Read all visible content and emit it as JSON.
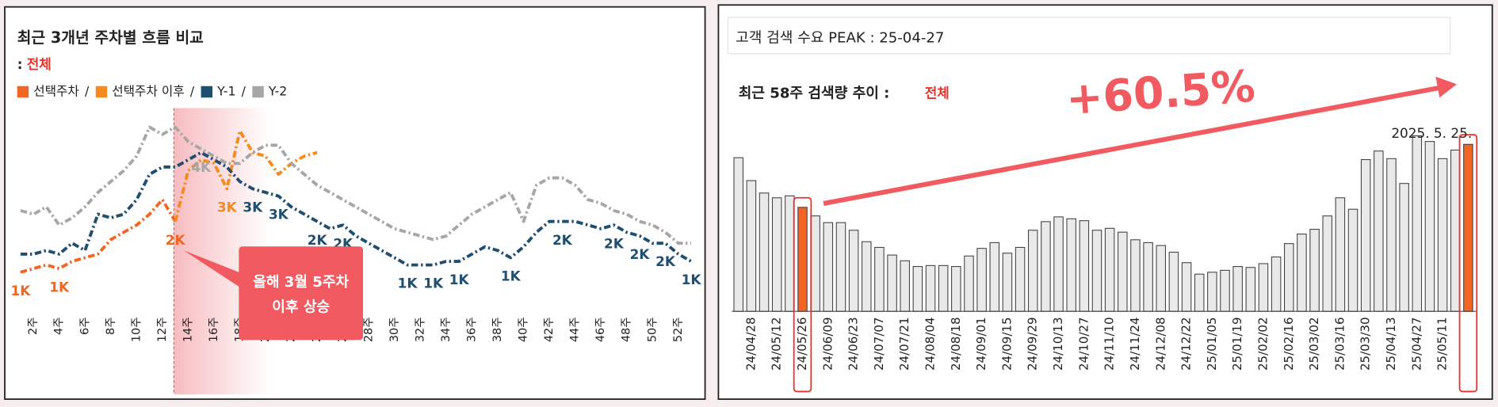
{
  "chart_data": [
    {
      "type": "line",
      "title": "최근 3개년 주차별 흐름 비교",
      "filter_prefix": ":",
      "filter": "전체",
      "legend_separator": "/",
      "categories": [
        null,
        "2주",
        null,
        "4주",
        null,
        "6주",
        null,
        "8주",
        null,
        "10주",
        null,
        "12주",
        null,
        "14주",
        null,
        "16주",
        null,
        "18주",
        null,
        "20주",
        null,
        "22주",
        null,
        "24주",
        null,
        "26주",
        null,
        "28주",
        null,
        "30주",
        null,
        "32주",
        null,
        "34주",
        null,
        "36주",
        null,
        "38주",
        null,
        "40주",
        null,
        "42주",
        null,
        "44주",
        null,
        "46주",
        null,
        "48주",
        null,
        "50주",
        null,
        "52주",
        null
      ],
      "series": [
        {
          "name": "선택주차",
          "color": "#f26522",
          "values": [
            1.0,
            1.1,
            1.2,
            1.1,
            1.3,
            1.4,
            1.5,
            1.9,
            2.1,
            2.3,
            2.6,
            3.0,
            2.4,
            null,
            null,
            null,
            null,
            null,
            null,
            null,
            null,
            null,
            null,
            null,
            null,
            null,
            null,
            null,
            null,
            null,
            null,
            null,
            null,
            null,
            null,
            null,
            null,
            null,
            null,
            null,
            null,
            null,
            null,
            null,
            null,
            null,
            null,
            null,
            null,
            null,
            null,
            null,
            null
          ],
          "value_labels": [
            "1K",
            null,
            null,
            "1K",
            null,
            null,
            null,
            null,
            null,
            null,
            null,
            null,
            "2K",
            null,
            null,
            null,
            null,
            null,
            null,
            null,
            null,
            null,
            null,
            null,
            null,
            null,
            null,
            null,
            null,
            null,
            null,
            null,
            null,
            null,
            null,
            null,
            null,
            null,
            null,
            null,
            null,
            null,
            null,
            null,
            null,
            null,
            null,
            null,
            null,
            null,
            null,
            null,
            null
          ]
        },
        {
          "name": "선택주차 이후",
          "color": "#f58a1f",
          "values": [
            null,
            null,
            null,
            null,
            null,
            null,
            null,
            null,
            null,
            null,
            null,
            null,
            2.4,
            3.8,
            4.1,
            4.0,
            3.3,
            4.9,
            4.3,
            4.2,
            3.7,
            4.0,
            4.2,
            4.3,
            null,
            null,
            null,
            null,
            null,
            null,
            null,
            null,
            null,
            null,
            null,
            null,
            null,
            null,
            null,
            null,
            null,
            null,
            null,
            null,
            null,
            null,
            null,
            null,
            null,
            null,
            null,
            null,
            null
          ],
          "value_labels": [
            null,
            null,
            null,
            null,
            null,
            null,
            null,
            null,
            null,
            null,
            null,
            null,
            null,
            null,
            null,
            null,
            "3K",
            null,
            null,
            null,
            null,
            null,
            null,
            null,
            null,
            null,
            null,
            null,
            null,
            null,
            null,
            null,
            null,
            null,
            null,
            null,
            null,
            null,
            null,
            null,
            null,
            null,
            null,
            null,
            null,
            null,
            null,
            null,
            null,
            null,
            null,
            null,
            null
          ]
        },
        {
          "name": "Y-1",
          "color": "#1f4e6e",
          "values": [
            1.5,
            1.5,
            1.6,
            1.5,
            1.8,
            1.6,
            2.6,
            2.5,
            2.6,
            3.0,
            3.7,
            3.9,
            3.9,
            4.1,
            4.3,
            4.1,
            3.9,
            3.5,
            3.3,
            3.2,
            3.1,
            2.8,
            2.6,
            2.4,
            2.2,
            2.3,
            2.0,
            1.8,
            1.6,
            1.4,
            1.2,
            1.2,
            1.2,
            1.3,
            1.3,
            1.5,
            1.7,
            1.6,
            1.4,
            1.7,
            2.1,
            2.4,
            2.4,
            2.4,
            2.3,
            2.2,
            2.3,
            2.1,
            2.0,
            1.8,
            1.8,
            1.5,
            1.3
          ],
          "value_labels": [
            null,
            null,
            null,
            null,
            null,
            null,
            null,
            null,
            null,
            null,
            null,
            null,
            null,
            null,
            null,
            null,
            null,
            null,
            "3K",
            null,
            "3K",
            null,
            null,
            "2K",
            null,
            "2K",
            null,
            null,
            null,
            null,
            "1K",
            null,
            "1K",
            null,
            "1K",
            null,
            null,
            null,
            "1K",
            null,
            null,
            null,
            "2K",
            null,
            null,
            null,
            "2K",
            null,
            "2K",
            null,
            "2K",
            null,
            "1K"
          ]
        },
        {
          "name": "Y-2",
          "color": "#a6a6a6",
          "values": [
            2.7,
            2.6,
            2.8,
            2.3,
            2.5,
            2.8,
            3.2,
            3.5,
            3.8,
            4.2,
            5.0,
            4.8,
            5.0,
            4.6,
            4.4,
            4.2,
            4.0,
            4.0,
            4.3,
            4.5,
            4.5,
            4.0,
            3.7,
            3.4,
            3.2,
            3.0,
            2.8,
            2.6,
            2.4,
            2.2,
            2.1,
            2.0,
            1.9,
            2.0,
            2.3,
            2.6,
            2.8,
            3.0,
            3.2,
            2.4,
            3.4,
            3.6,
            3.6,
            3.4,
            3.0,
            2.9,
            2.7,
            2.6,
            2.4,
            2.3,
            2.1,
            1.8,
            1.8
          ],
          "value_labels": [
            null,
            null,
            null,
            null,
            null,
            null,
            null,
            null,
            null,
            null,
            null,
            null,
            null,
            null,
            "4K",
            null,
            null,
            null,
            null,
            null,
            null,
            null,
            null,
            null,
            null,
            null,
            null,
            null,
            null,
            null,
            null,
            null,
            null,
            null,
            null,
            null,
            null,
            null,
            null,
            null,
            null,
            null,
            null,
            null,
            null,
            null,
            null,
            null,
            null,
            null,
            null,
            null,
            null
          ]
        }
      ],
      "callout": [
        "올해 3월 5주차",
        "이후 상승"
      ]
    },
    {
      "type": "bar",
      "header": "고객 검색 수요 PEAK : 25-04-27",
      "subtitle": "최근 58주 검색량 추이 :",
      "filter": "전체",
      "categories": [
        null,
        "24/04/28",
        null,
        "24/05/12",
        null,
        "24/05/26",
        null,
        "24/06/09",
        null,
        "24/06/23",
        null,
        "24/07/07",
        null,
        "24/07/21",
        null,
        "24/08/04",
        null,
        "24/08/18",
        null,
        "24/09/01",
        null,
        "24/09/15",
        null,
        "24/09/29",
        null,
        "24/10/13",
        null,
        "24/10/27",
        null,
        "24/11/10",
        null,
        "24/11/24",
        null,
        "24/12/08",
        null,
        "24/12/22",
        null,
        "25/01/05",
        null,
        "25/01/19",
        null,
        "25/02/02",
        null,
        "25/02/16",
        null,
        "25/03/02",
        null,
        "25/03/16",
        null,
        "25/03/30",
        null,
        "25/04/13",
        null,
        "25/04/27",
        null,
        "25/05/11",
        null,
        null
      ],
      "values": [
        161,
        137,
        124,
        119,
        121,
        109,
        100,
        93,
        93,
        85,
        73,
        67,
        59,
        53,
        47,
        48,
        48,
        47,
        58,
        66,
        72,
        61,
        67,
        85,
        94,
        99,
        97,
        95,
        85,
        87,
        83,
        75,
        72,
        69,
        62,
        51,
        39,
        41,
        43,
        47,
        46,
        50,
        57,
        71,
        81,
        86,
        100,
        119,
        107,
        159,
        168,
        160,
        134,
        184,
        178,
        160,
        169,
        175
      ],
      "color": "#e9e9e9",
      "highlight_color": "#f26522",
      "highlight": [
        5,
        57
      ],
      "change_annotation": "+60.5%",
      "date_annotation": "2025. 5. 25."
    }
  ]
}
